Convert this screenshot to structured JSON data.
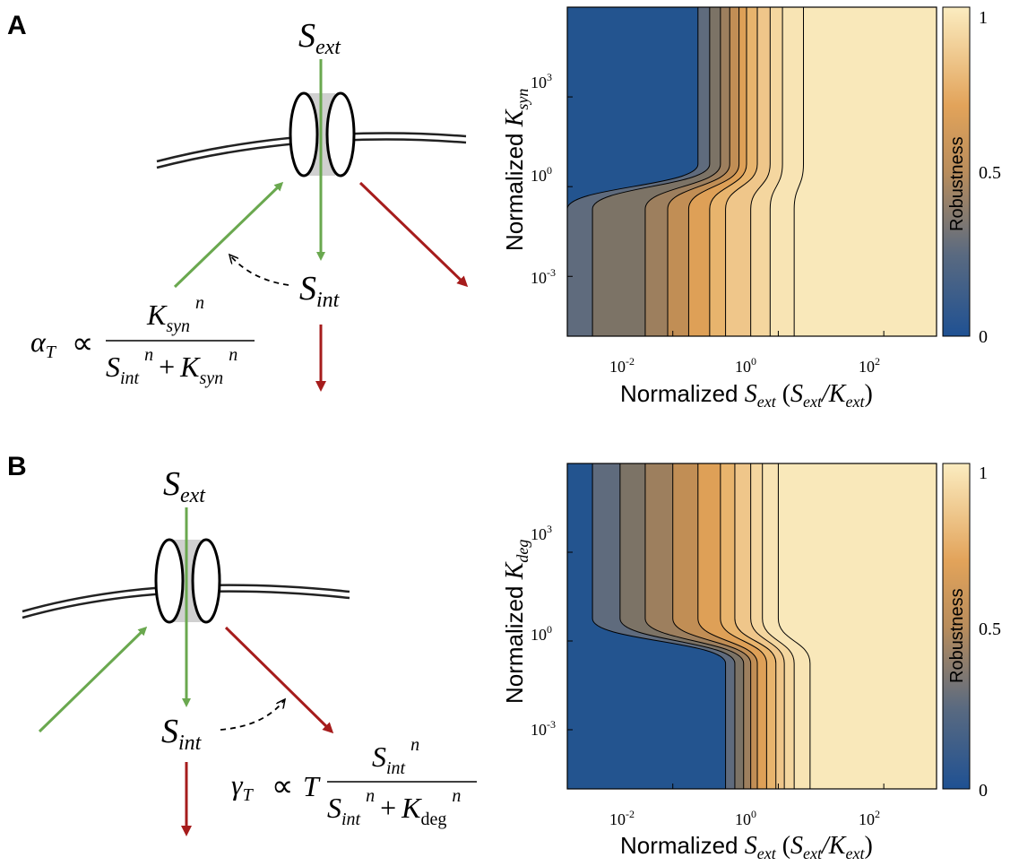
{
  "panels": [
    {
      "letter": "A",
      "diagram": {
        "s_ext": "S",
        "s_ext_sub": "ext",
        "s_int": "S",
        "s_int_sub": "int",
        "rate_lhs": "α",
        "rate_lhs_sub": "T",
        "prop": "∝",
        "num_K": "K",
        "num_K_sub": "syn",
        "sup_n": "n",
        "den_S": "S",
        "den_S_sub": "int",
        "den_plus": "+",
        "den_K": "K",
        "den_K_sub": "syn"
      },
      "plot": {
        "ylabel_prefix": "Normalized ",
        "ylabel_K": "K",
        "ylabel_sub": "syn",
        "xlabel_prefix": "Normalized ",
        "xlabel_S": "S",
        "xlabel_S_sub": "ext",
        "xlabel_paren_open": " (",
        "xlabel_S2": "S",
        "xlabel_S2_sub": "ext",
        "xlabel_slash": "/",
        "xlabel_K": "K",
        "xlabel_K_sub": "ext",
        "xlabel_paren_close": ")",
        "xticks": [
          {
            "base": "10",
            "exp": "-2"
          },
          {
            "base": "10",
            "exp": "0"
          },
          {
            "base": "10",
            "exp": "2"
          }
        ],
        "yticks": [
          {
            "base": "10",
            "exp": "3"
          },
          {
            "base": "10",
            "exp": "0"
          },
          {
            "base": "10",
            "exp": "-3"
          }
        ],
        "colorbar": {
          "title": "Robustness",
          "ticks": [
            "1",
            "0.5",
            "0"
          ]
        }
      }
    },
    {
      "letter": "B",
      "diagram": {
        "s_ext": "S",
        "s_ext_sub": "ext",
        "s_int": "S",
        "s_int_sub": "int",
        "rate_lhs": "γ",
        "rate_lhs_sub": "T",
        "prop": "∝",
        "T": "T",
        "num_S": "S",
        "num_S_sub": "int",
        "sup_n": "n",
        "den_S": "S",
        "den_S_sub": "int",
        "den_plus": "+",
        "den_K": "K",
        "den_K_sub": "deg"
      },
      "plot": {
        "ylabel_prefix": "Normalized ",
        "ylabel_K": "K",
        "ylabel_sub": "deg",
        "xlabel_prefix": "Normalized ",
        "xlabel_S": "S",
        "xlabel_S_sub": "ext",
        "xlabel_paren_open": " (",
        "xlabel_S2": "S",
        "xlabel_S2_sub": "ext",
        "xlabel_slash": "/",
        "xlabel_K": "K",
        "xlabel_K_sub": "ext",
        "xlabel_paren_close": ")",
        "xticks": [
          {
            "base": "10",
            "exp": "-2"
          },
          {
            "base": "10",
            "exp": "0"
          },
          {
            "base": "10",
            "exp": "2"
          }
        ],
        "yticks": [
          {
            "base": "10",
            "exp": "3"
          },
          {
            "base": "10",
            "exp": "0"
          },
          {
            "base": "10",
            "exp": "-3"
          }
        ],
        "colorbar": {
          "title": "Robustness",
          "ticks": [
            "1",
            "0.5",
            "0"
          ]
        }
      }
    }
  ],
  "colors": {
    "influx_arrow": "#6aa84f",
    "efflux_arrow": "#a61c1c",
    "colormap_low": "#23548f",
    "colormap_mid": "#e0a55c",
    "colormap_high": "#f9e6b4"
  },
  "chart_data": [
    {
      "type": "heatmap",
      "xscale": "log",
      "yscale": "log",
      "xlim": [
        0.0001,
        1000
      ],
      "ylim": [
        1e-05,
        1000000
      ],
      "colorbar_range": [
        0,
        1
      ],
      "contour_levels": [
        0,
        0.1,
        0.2,
        0.3,
        0.4,
        0.5,
        0.6,
        0.7,
        0.8,
        0.9,
        1.0
      ],
      "x_transitions_at_high_y": [
        0.03,
        0.05,
        0.08,
        0.12,
        0.18,
        0.25,
        0.4,
        0.7,
        1.2,
        3.0
      ],
      "x_transitions_at_low_y": [
        0.0001,
        0.0003,
        0.003,
        0.008,
        0.02,
        0.05,
        0.1,
        0.3,
        0.7,
        2.0
      ]
    },
    {
      "type": "heatmap",
      "xscale": "log",
      "yscale": "log",
      "xlim": [
        0.0001,
        1000
      ],
      "ylim": [
        1e-05,
        1000000
      ],
      "colorbar_range": [
        0,
        1
      ],
      "contour_levels": [
        0,
        0.1,
        0.2,
        0.3,
        0.4,
        0.5,
        0.6,
        0.7,
        0.8,
        0.9,
        1.0
      ],
      "x_transitions_at_high_y": [
        0.0003,
        0.001,
        0.003,
        0.01,
        0.03,
        0.08,
        0.15,
        0.3,
        0.5,
        1.0
      ],
      "x_transitions_at_low_y": [
        0.1,
        0.15,
        0.22,
        0.3,
        0.4,
        0.6,
        0.9,
        1.3,
        2.0,
        4.0
      ]
    }
  ]
}
